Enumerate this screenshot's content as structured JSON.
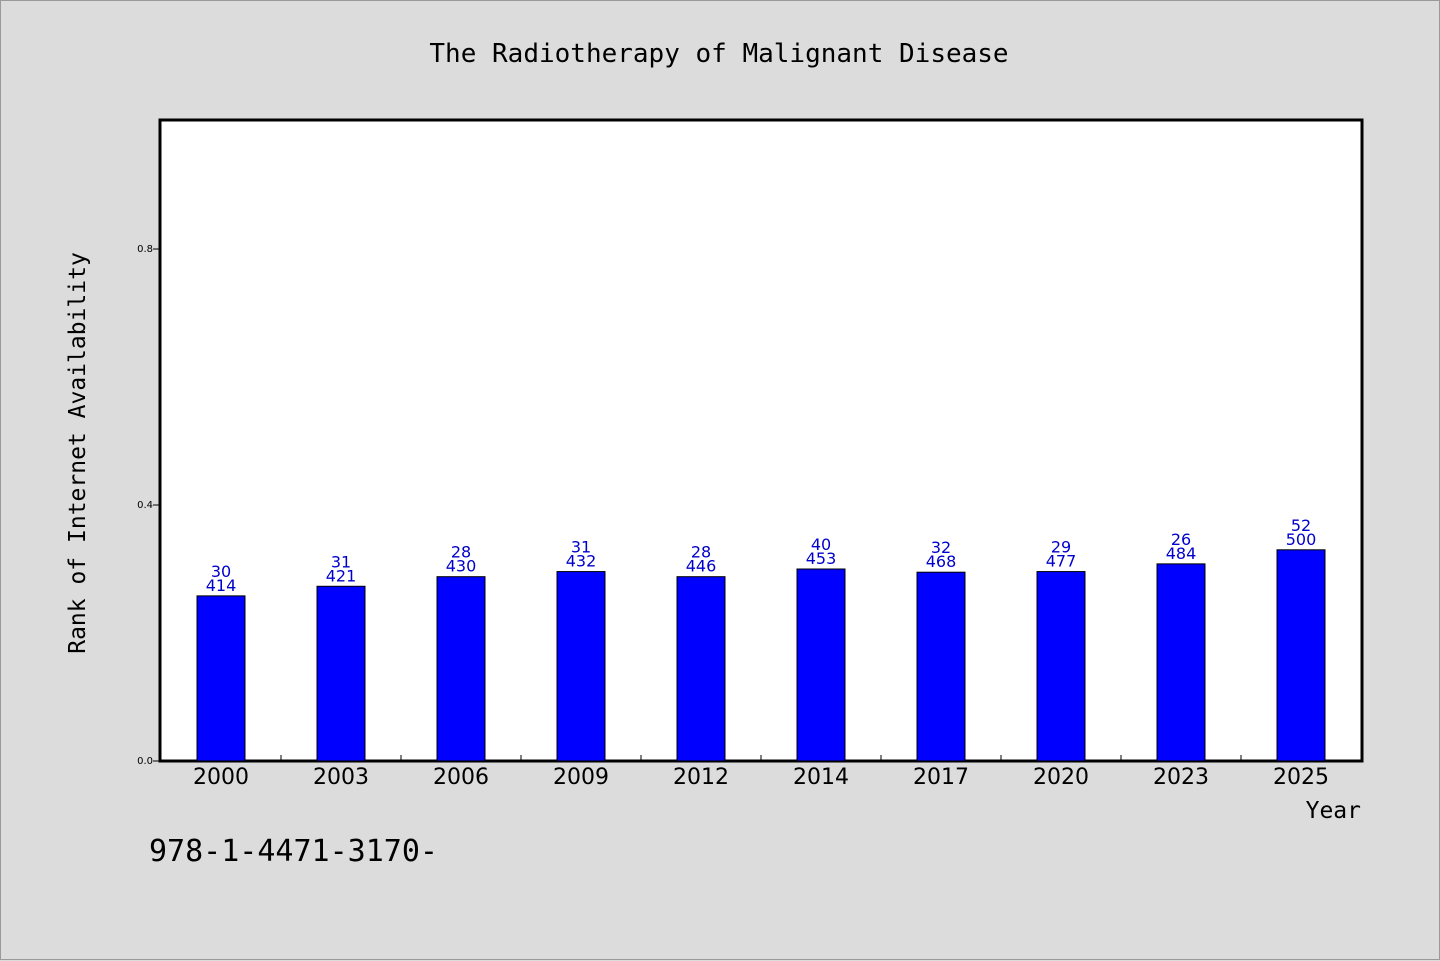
{
  "chart_data": {
    "type": "bar",
    "title": "The Radiotherapy of Malignant Disease",
    "xlabel": "Year",
    "ylabel": "Rank of Internet Availability",
    "ylim": [
      0,
      1.0
    ],
    "yticks": [
      "0.0",
      "0.4",
      "0.8"
    ],
    "grid": false,
    "categories": [
      "2000",
      "2003",
      "2006",
      "2009",
      "2012",
      "2014",
      "2017",
      "2020",
      "2023",
      "2025"
    ],
    "values": [
      0.258,
      0.273,
      0.288,
      0.296,
      0.288,
      0.3,
      0.295,
      0.296,
      0.308,
      0.33
    ],
    "bar_labels_top": [
      "30",
      "31",
      "28",
      "31",
      "28",
      "40",
      "32",
      "29",
      "26",
      "52"
    ],
    "bar_labels_bottom": [
      "414",
      "421",
      "430",
      "432",
      "446",
      "453",
      "468",
      "477",
      "484",
      "500"
    ],
    "bar_color": "#0000ff",
    "label_color": "#0000cc"
  },
  "footer": {
    "code": "978-1-4471-3170-"
  }
}
